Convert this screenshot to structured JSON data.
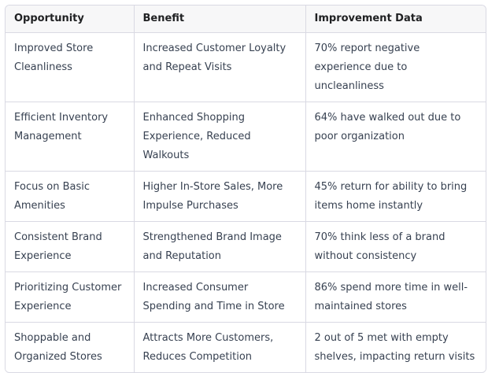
{
  "table": {
    "headers": [
      "Opportunity",
      "Benefit",
      "Improvement Data"
    ],
    "rows": [
      [
        "Improved Store Cleanliness",
        "Increased Customer Loyalty and Repeat Visits",
        "70% report negative experience due to uncleanliness"
      ],
      [
        "Efficient Inventory Management",
        "Enhanced Shopping Experience, Reduced Walkouts",
        "64% have walked out due to poor organization"
      ],
      [
        "Focus on Basic Amenities",
        "Higher In-Store Sales, More Impulse Purchases",
        "45% return for ability to bring items home instantly"
      ],
      [
        "Consistent Brand Experience",
        "Strengthened Brand Image and Reputation",
        "70% think less of a brand without consistency"
      ],
      [
        "Prioritizing Customer Experience",
        "Increased Consumer Spending and Time in Store",
        "86% spend more time in well-maintained stores"
      ],
      [
        "Shoppable and Organized Stores",
        "Attracts More Customers, Reduces Competition",
        "2 out of 5 met with empty shelves, impacting return visits"
      ]
    ]
  }
}
